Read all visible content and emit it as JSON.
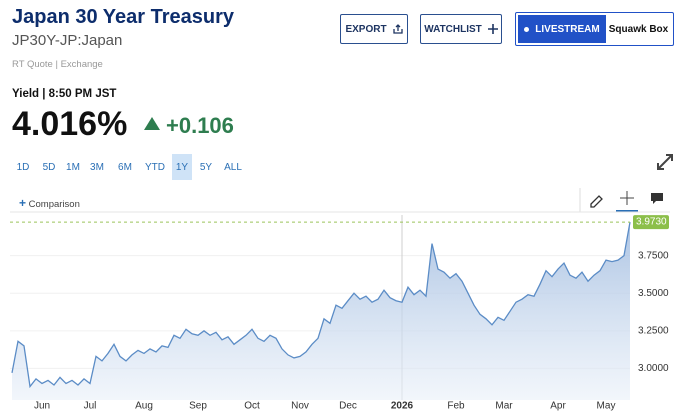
{
  "header": {
    "title": "Japan 30 Year Treasury",
    "symbol": "JP30Y-JP:Japan",
    "source": "RT Quote | Exchange"
  },
  "buttons": {
    "export": "EXPORT",
    "watchlist": "WATCHLIST",
    "livestream": "LIVESTREAM",
    "squawk": "Squawk Box"
  },
  "quote": {
    "label": "Yield | 8:50 PM JST",
    "value": "4.016%",
    "change": "+0.106"
  },
  "ranges": [
    "1D",
    "5D",
    "1M",
    "3M",
    "6M",
    "YTD",
    "1Y",
    "5Y",
    "ALL"
  ],
  "selected_range": "1Y",
  "comparison": "Comparison",
  "chart": {
    "type": "area",
    "color": "#5b8cc6",
    "categories": [
      null,
      null,
      null,
      null,
      null,
      "Jun",
      null,
      null,
      null,
      null,
      null,
      null,
      null,
      "Jul",
      null,
      null,
      null,
      null,
      null,
      null,
      null,
      null,
      "Aug",
      null,
      null,
      null,
      null,
      null,
      null,
      null,
      null,
      "Sep",
      null,
      null,
      null,
      null,
      null,
      null,
      null,
      null,
      "Oct",
      null,
      null,
      null,
      null,
      null,
      null,
      null,
      "Nov",
      null,
      null,
      null,
      null,
      null,
      null,
      null,
      "Dec",
      null,
      null,
      null,
      null,
      null,
      null,
      null,
      null,
      "2026",
      null,
      null,
      null,
      null,
      null,
      null,
      null,
      null,
      "Feb",
      null,
      null,
      null,
      null,
      null,
      null,
      null,
      "Mar",
      null,
      null,
      null,
      null,
      null,
      null,
      null,
      null,
      "Apr",
      null,
      null,
      null,
      null,
      null,
      null,
      null,
      "May",
      null,
      null,
      null,
      null
    ],
    "values": [
      2.97,
      3.18,
      3.15,
      2.88,
      2.93,
      2.9,
      2.92,
      2.89,
      2.94,
      2.9,
      2.92,
      2.89,
      2.93,
      2.9,
      3.08,
      3.05,
      3.1,
      3.16,
      3.08,
      3.05,
      3.09,
      3.12,
      3.1,
      3.13,
      3.11,
      3.15,
      3.14,
      3.22,
      3.2,
      3.26,
      3.23,
      3.22,
      3.25,
      3.22,
      3.24,
      3.19,
      3.21,
      3.16,
      3.19,
      3.22,
      3.26,
      3.2,
      3.18,
      3.22,
      3.2,
      3.13,
      3.09,
      3.07,
      3.08,
      3.11,
      3.16,
      3.2,
      3.33,
      3.3,
      3.42,
      3.4,
      3.45,
      3.5,
      3.46,
      3.48,
      3.44,
      3.46,
      3.52,
      3.47,
      3.45,
      3.44,
      3.54,
      3.49,
      3.52,
      3.48,
      3.83,
      3.66,
      3.64,
      3.6,
      3.63,
      3.58,
      3.5,
      3.42,
      3.36,
      3.33,
      3.29,
      3.34,
      3.32,
      3.38,
      3.44,
      3.46,
      3.49,
      3.48,
      3.56,
      3.65,
      3.61,
      3.66,
      3.7,
      3.62,
      3.6,
      3.64,
      3.58,
      3.62,
      3.65,
      3.72,
      3.71,
      3.72,
      3.75,
      3.973
    ],
    "last_value_label": "3.9730",
    "ylim": [
      2.79,
      4.02
    ],
    "yticks": [
      {
        "value": 3.0,
        "label": "3.0000"
      },
      {
        "value": 3.25,
        "label": "3.2500"
      },
      {
        "value": 3.5,
        "label": "3.5000"
      },
      {
        "value": 3.75,
        "label": "3.7500"
      }
    ],
    "grid": true
  }
}
